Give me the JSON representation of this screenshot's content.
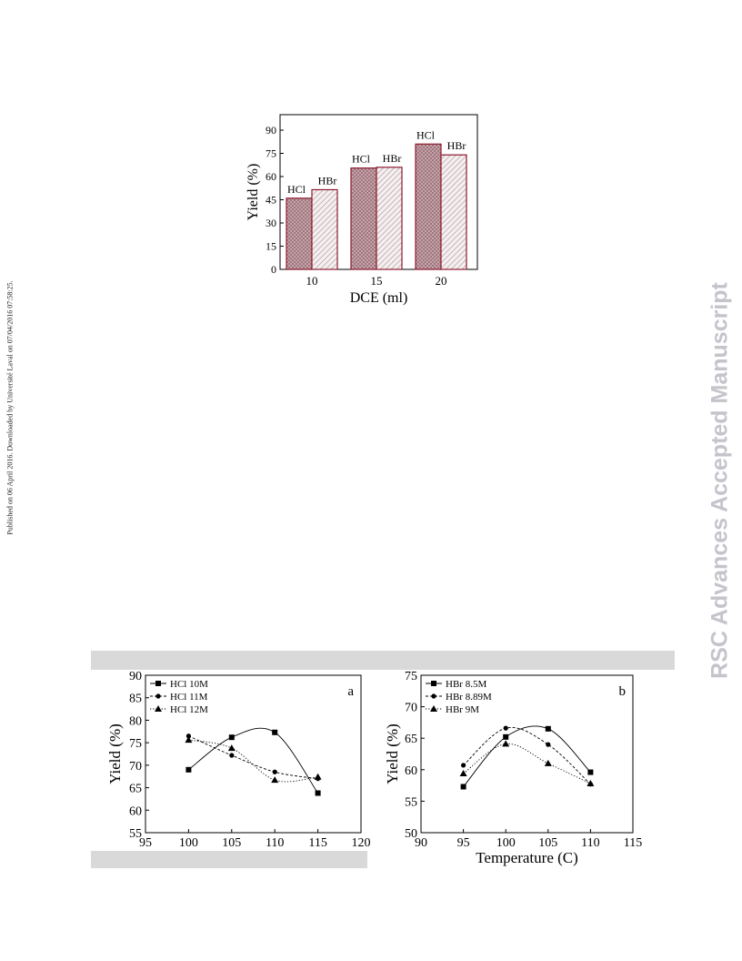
{
  "side_note": "Published on 06 April 2016. Downloaded by Université Laval on 07/04/2016 07:58:25.",
  "watermark": "RSC Advances Accepted Manuscript",
  "colors": {
    "hcl_bar": "#c9a9b0",
    "bar_edge": "#8b1a2e",
    "hbr_bar": "#f4f0f0",
    "band": "#d9d9d9"
  },
  "chart_data": [
    {
      "type": "bar",
      "xlabel": "DCE (ml)",
      "ylabel": "Yield (%)",
      "categories": [
        "10",
        "15",
        "20"
      ],
      "ylim": [
        0,
        100
      ],
      "yticks": [
        0,
        15,
        30,
        45,
        60,
        75,
        90
      ],
      "series": [
        {
          "name": "HCl",
          "values": [
            46,
            65.5,
            81
          ]
        },
        {
          "name": "HBr",
          "values": [
            51.5,
            66,
            74
          ]
        }
      ],
      "legend": "none",
      "grid": false
    },
    {
      "type": "scatter",
      "panel_label": "a",
      "xlabel": "",
      "ylabel": "Yield (%)",
      "xlim": [
        95,
        120
      ],
      "ylim": [
        55,
        90
      ],
      "xticks": [
        95,
        100,
        105,
        110,
        115,
        120
      ],
      "yticks": [
        55,
        60,
        65,
        70,
        75,
        80,
        85,
        90
      ],
      "series": [
        {
          "name": "HCl 10M",
          "marker": "square",
          "line": "solid",
          "x": [
            100,
            105,
            110,
            115
          ],
          "y": [
            69,
            76.2,
            77.3,
            63.8
          ]
        },
        {
          "name": "HCl 11M",
          "marker": "circle",
          "line": "dashed",
          "x": [
            100,
            105,
            110,
            115
          ],
          "y": [
            76.5,
            72.2,
            68.5,
            67
          ]
        },
        {
          "name": "HCl 12M",
          "marker": "triangle",
          "line": "dotted",
          "x": [
            100,
            105,
            110,
            115
          ],
          "y": [
            75.6,
            73.8,
            66.7,
            67.4
          ]
        }
      ],
      "legend": "top-left",
      "grid": false
    },
    {
      "type": "scatter",
      "panel_label": "b",
      "xlabel": "Temperature (C)",
      "ylabel": "Yield (%)",
      "xlim": [
        90,
        115
      ],
      "ylim": [
        50,
        75
      ],
      "xticks": [
        90,
        95,
        100,
        105,
        110,
        115
      ],
      "yticks": [
        50,
        55,
        60,
        65,
        70,
        75
      ],
      "series": [
        {
          "name": "HBr 8.5M",
          "marker": "square",
          "line": "solid",
          "x": [
            95,
            100,
            105,
            110
          ],
          "y": [
            57.3,
            65.2,
            66.5,
            59.6
          ]
        },
        {
          "name": "HBr 8.89M",
          "marker": "circle",
          "line": "dashed",
          "x": [
            95,
            100,
            105,
            110
          ],
          "y": [
            60.7,
            66.6,
            64,
            57.7
          ]
        },
        {
          "name": "HBr 9M",
          "marker": "triangle",
          "line": "dotted",
          "x": [
            95,
            100,
            105,
            110
          ],
          "y": [
            59.4,
            64.1,
            61,
            57.8
          ]
        }
      ],
      "legend": "top-left",
      "grid": false
    }
  ]
}
